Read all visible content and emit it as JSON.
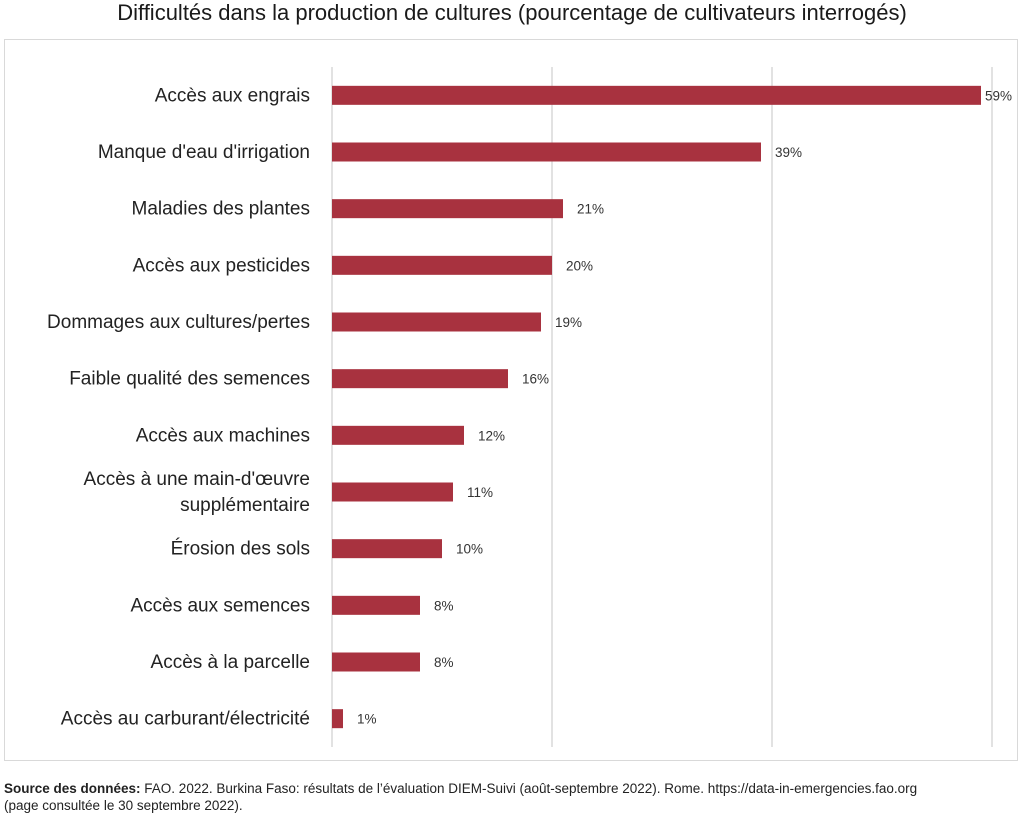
{
  "chart_data": {
    "type": "bar",
    "orientation": "horizontal",
    "title": "Difficultés dans la production de cultures (pourcentage de cultivateurs interrogés)",
    "categories": [
      [
        "Accès aux engrais"
      ],
      [
        "Manque d'eau d'irrigation"
      ],
      [
        "Maladies des plantes"
      ],
      [
        "Accès aux pesticides"
      ],
      [
        "Dommages aux cultures/pertes"
      ],
      [
        "Faible qualité des semences"
      ],
      [
        "Accès aux machines"
      ],
      [
        "Accès à une main-d'œuvre",
        "supplémentaire"
      ],
      [
        "Érosion des sols"
      ],
      [
        "Accès aux semences"
      ],
      [
        "Accès à la parcelle"
      ],
      [
        "Accès au carburant/électricité"
      ]
    ],
    "values": [
      59,
      39,
      21,
      20,
      19,
      16,
      12,
      11,
      10,
      8,
      8,
      1
    ],
    "value_labels": [
      "59%",
      "39%",
      "21%",
      "20%",
      "19%",
      "16%",
      "12%",
      "11%",
      "10%",
      "8%",
      "8%",
      "1%"
    ],
    "xlim": [
      0,
      60
    ],
    "gridlines_at": [
      0,
      20,
      40,
      60
    ],
    "grid": "vertical",
    "bar_color": "#a8323f"
  },
  "source": {
    "label": "Source des données:",
    "line1": " FAO. 2022. Burkina Faso: résultats de l’évaluation DIEM-Suivi (août-septembre 2022). Rome. https://data-in-emergencies.fao.org",
    "line2": "(page consultée le 30 septembre 2022)."
  }
}
